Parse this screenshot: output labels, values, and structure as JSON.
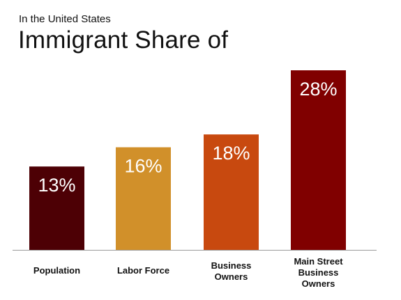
{
  "subtitle": "In the United States",
  "title": "Immigrant Share of",
  "chart_data": {
    "type": "bar",
    "categories": [
      [
        "Population"
      ],
      [
        "Labor Force"
      ],
      [
        "Business",
        "Owners"
      ],
      [
        "Main Street",
        "Business",
        "Owners"
      ]
    ],
    "values": [
      13,
      16,
      18,
      28
    ],
    "value_labels": [
      "13%",
      "16%",
      "18%",
      "28%"
    ],
    "bar_colors": [
      "#4d0005",
      "#d1902a",
      "#c8490f",
      "#800000"
    ],
    "axis_color": "#9a9a9a",
    "label_color": "#ffffff",
    "ylim": [
      0,
      28
    ],
    "grid": false,
    "legend": "none"
  }
}
